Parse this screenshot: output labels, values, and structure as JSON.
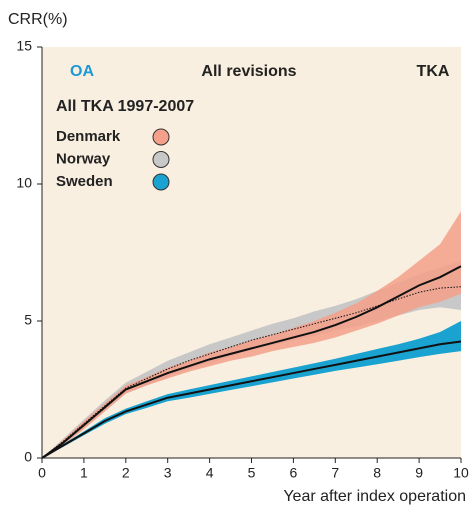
{
  "chart_data": {
    "type": "line",
    "y_label": "CRR(%)",
    "x_label": "Year after index operation",
    "annotations": [
      {
        "text": "OA",
        "color": "#1a9ad6"
      },
      {
        "text": "All revisions",
        "color": "#222222"
      },
      {
        "text": "TKA",
        "color": "#222222"
      }
    ],
    "legend_title": "All TKA 1997-2007",
    "legend_position": "upper left",
    "background": "#f9efe0",
    "line_color": "#111111",
    "x": [
      0,
      0.5,
      1,
      1.5,
      2,
      2.5,
      3,
      3.5,
      4,
      4.5,
      5,
      5.5,
      6,
      6.5,
      7,
      7.5,
      8,
      8.5,
      9,
      9.5,
      10
    ],
    "series": [
      {
        "name": "Denmark",
        "color": "#f4a08a",
        "dash": "solid",
        "values": [
          0,
          0.55,
          1.2,
          1.85,
          2.5,
          2.8,
          3.1,
          3.35,
          3.6,
          3.8,
          4.0,
          4.2,
          4.4,
          4.6,
          4.85,
          5.15,
          5.5,
          5.9,
          6.3,
          6.6,
          7.0
        ],
        "upper": [
          0,
          0.65,
          1.35,
          2.0,
          2.65,
          2.95,
          3.3,
          3.55,
          3.85,
          4.05,
          4.3,
          4.5,
          4.75,
          5.0,
          5.3,
          5.65,
          6.1,
          6.6,
          7.2,
          7.8,
          9.0
        ],
        "lower": [
          0,
          0.45,
          1.05,
          1.7,
          2.35,
          2.65,
          2.9,
          3.15,
          3.35,
          3.55,
          3.7,
          3.9,
          4.05,
          4.2,
          4.4,
          4.65,
          4.9,
          5.2,
          5.5,
          5.7,
          6.0
        ]
      },
      {
        "name": "Norway",
        "color": "#c8c8c8",
        "dash": "dotted",
        "values": [
          0,
          0.6,
          1.25,
          1.9,
          2.55,
          2.9,
          3.25,
          3.55,
          3.8,
          4.05,
          4.3,
          4.5,
          4.7,
          4.9,
          5.1,
          5.3,
          5.55,
          5.8,
          6.05,
          6.2,
          6.25
        ],
        "upper": [
          0,
          0.7,
          1.4,
          2.1,
          2.75,
          3.15,
          3.55,
          3.85,
          4.15,
          4.4,
          4.65,
          4.9,
          5.1,
          5.35,
          5.55,
          5.8,
          6.1,
          6.4,
          6.7,
          6.95,
          7.2
        ],
        "lower": [
          0,
          0.5,
          1.1,
          1.7,
          2.35,
          2.65,
          2.95,
          3.25,
          3.45,
          3.7,
          3.95,
          4.1,
          4.3,
          4.45,
          4.65,
          4.8,
          5.0,
          5.2,
          5.4,
          5.5,
          5.4
        ]
      },
      {
        "name": "Sweden",
        "color": "#1aa3d0",
        "dash": "solid",
        "values": [
          0,
          0.45,
          0.9,
          1.35,
          1.7,
          1.95,
          2.2,
          2.35,
          2.5,
          2.65,
          2.8,
          2.95,
          3.1,
          3.25,
          3.4,
          3.55,
          3.7,
          3.85,
          4.0,
          4.15,
          4.25
        ],
        "upper": [
          0,
          0.5,
          0.97,
          1.45,
          1.8,
          2.07,
          2.33,
          2.5,
          2.66,
          2.82,
          2.98,
          3.14,
          3.3,
          3.46,
          3.62,
          3.8,
          3.98,
          4.15,
          4.35,
          4.6,
          5.0
        ],
        "lower": [
          0,
          0.4,
          0.83,
          1.25,
          1.6,
          1.83,
          2.07,
          2.2,
          2.34,
          2.48,
          2.62,
          2.76,
          2.9,
          3.04,
          3.18,
          3.3,
          3.42,
          3.55,
          3.68,
          3.8,
          3.9
        ]
      }
    ],
    "xlim": [
      0,
      10
    ],
    "ylim": [
      0,
      15
    ],
    "xticks": [
      0,
      1,
      2,
      3,
      4,
      5,
      6,
      7,
      8,
      9,
      10
    ],
    "yticks": [
      0,
      5,
      10,
      15
    ]
  }
}
